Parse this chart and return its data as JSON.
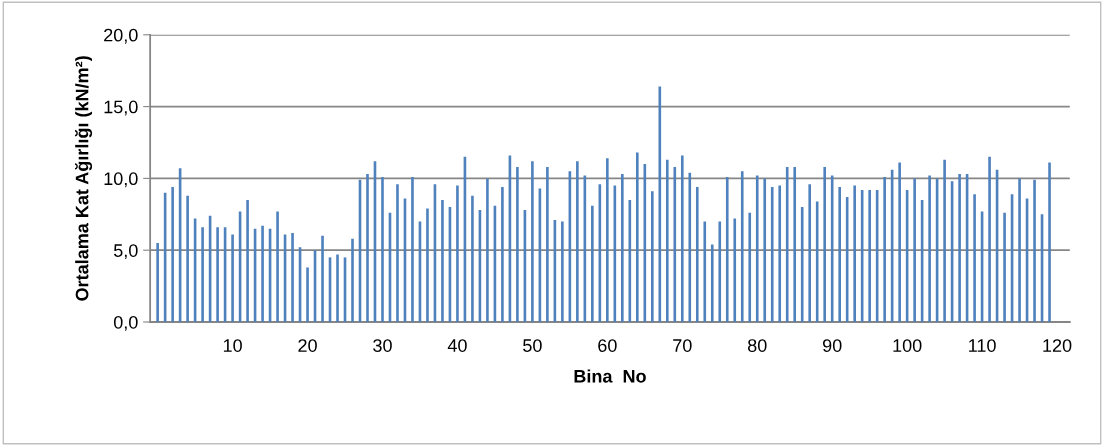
{
  "chart_data": {
    "type": "bar",
    "xlabel": "Bina  No",
    "ylabel": "Ortalama Kat Ağırlığı (kN/m²)",
    "color": "#4f81bd",
    "x": [
      0,
      1,
      2,
      3,
      4,
      5,
      6,
      7,
      8,
      9,
      10,
      11,
      12,
      13,
      14,
      15,
      16,
      17,
      18,
      19,
      20,
      21,
      22,
      23,
      24,
      25,
      26,
      27,
      28,
      29,
      30,
      31,
      32,
      33,
      34,
      35,
      36,
      37,
      38,
      39,
      40,
      41,
      42,
      43,
      44,
      45,
      46,
      47,
      48,
      49,
      50,
      51,
      52,
      53,
      54,
      55,
      56,
      57,
      58,
      59,
      60,
      61,
      62,
      63,
      64,
      65,
      66,
      67,
      68,
      69,
      70,
      71,
      72,
      73,
      74,
      75,
      76,
      77,
      78,
      79,
      80,
      81,
      82,
      83,
      84,
      85,
      86,
      87,
      88,
      89,
      90,
      91,
      92,
      93,
      94,
      95,
      96,
      97,
      98,
      99,
      100,
      101,
      102,
      103,
      104,
      105,
      106,
      107,
      108,
      109,
      110,
      111,
      112,
      113,
      114,
      115,
      116,
      117,
      118,
      119
    ],
    "values": [
      5.5,
      9.0,
      9.4,
      10.7,
      8.8,
      7.2,
      6.6,
      7.4,
      6.6,
      6.6,
      6.1,
      7.7,
      8.5,
      6.5,
      6.7,
      6.5,
      7.7,
      6.1,
      6.2,
      5.2,
      3.8,
      5.0,
      6.0,
      4.5,
      4.7,
      4.5,
      5.8,
      9.9,
      10.3,
      11.2,
      10.1,
      7.6,
      9.6,
      8.6,
      10.1,
      7.0,
      7.9,
      9.6,
      8.5,
      8.0,
      9.5,
      11.5,
      8.8,
      7.8,
      10.0,
      8.1,
      9.4,
      11.6,
      10.8,
      7.8,
      11.2,
      9.3,
      10.8,
      7.1,
      7.0,
      10.5,
      11.2,
      10.2,
      8.1,
      9.6,
      11.4,
      9.5,
      10.3,
      8.5,
      11.8,
      11.0,
      9.1,
      16.4,
      11.3,
      10.8,
      11.6,
      10.4,
      9.4,
      7.0,
      5.4,
      7.0,
      10.1,
      7.2,
      10.5,
      7.6,
      10.2,
      10.0,
      9.4,
      9.5,
      10.8,
      10.8,
      8.0,
      9.6,
      8.4,
      10.8,
      10.2,
      9.4,
      8.7,
      9.5,
      9.2,
      9.2,
      9.2,
      10.1,
      10.6,
      11.1,
      9.2,
      10.0,
      8.5,
      10.2,
      10.0,
      11.3,
      9.8,
      10.3,
      10.3,
      8.9,
      7.7,
      11.5,
      10.6,
      7.6,
      8.9,
      10.0,
      8.6,
      9.9,
      7.5,
      11.1
    ],
    "xlim": [
      -1,
      121.7
    ],
    "xticks": [
      10,
      20,
      30,
      40,
      50,
      60,
      70,
      80,
      90,
      100,
      110,
      120
    ],
    "ylim": [
      0,
      20
    ],
    "yticks": [
      {
        "value": 0,
        "label": "0,0"
      },
      {
        "value": 5,
        "label": "5,0"
      },
      {
        "value": 10,
        "label": "10,0"
      },
      {
        "value": 15,
        "label": "15,0"
      },
      {
        "value": 20,
        "label": "20,0"
      }
    ],
    "grid": "y"
  }
}
